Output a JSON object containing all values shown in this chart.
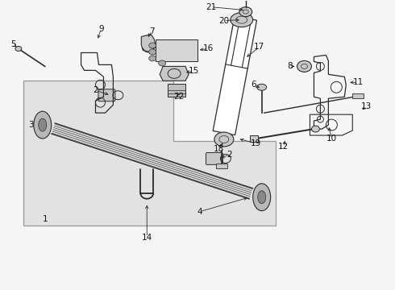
{
  "bg_color": "#f5f5f5",
  "line_color": "#2a2a2a",
  "text_color": "#111111",
  "label_fontsize": 7.5,
  "box_fill": "#e0e0e0",
  "box_edge": "#888888",
  "part_fill": "#c8c8c8",
  "part_edge": "#2a2a2a"
}
